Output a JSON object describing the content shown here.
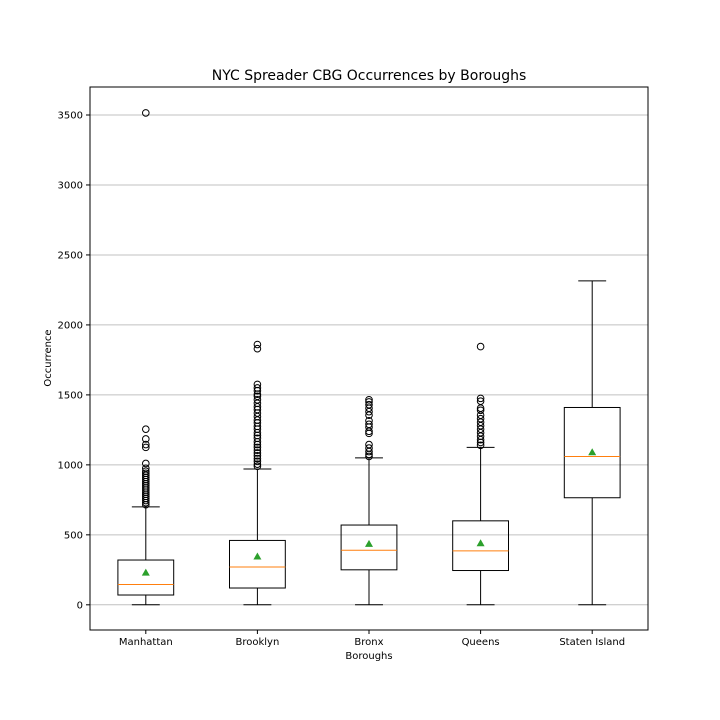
{
  "chart_data": {
    "type": "box",
    "title": "NYC Spreader CBG Occurrences by Boroughs",
    "xlabel": "Boroughs",
    "ylabel": "Occurrence",
    "ylim": [
      -180,
      3700
    ],
    "yticks": [
      0,
      500,
      1000,
      1500,
      2000,
      2500,
      3000,
      3500
    ],
    "grid": "horizontal",
    "colors": {
      "box": "#000000",
      "median": "#ff7f0e",
      "mean": "#2ca02c",
      "grid": "#c0c0c0"
    },
    "categories": [
      "Manhattan",
      "Brooklyn",
      "Bronx",
      "Queens",
      "Staten Island"
    ],
    "boxes": [
      {
        "name": "Manhattan",
        "whisker_low": 0,
        "q1": 70,
        "median": 145,
        "q3": 320,
        "whisker_high": 700,
        "mean": 230,
        "outliers": [
          3515,
          1255,
          1185,
          1145,
          1125,
          1010,
          975,
          955,
          940,
          925,
          910,
          895,
          880,
          865,
          850,
          835,
          820,
          805,
          790,
          775,
          760,
          745,
          730,
          715
        ]
      },
      {
        "name": "Brooklyn",
        "whisker_low": 0,
        "q1": 120,
        "median": 270,
        "q3": 460,
        "whisker_high": 970,
        "mean": 345,
        "outliers": [
          1860,
          1830,
          1575,
          1550,
          1530,
          1505,
          1490,
          1465,
          1440,
          1415,
          1395,
          1370,
          1345,
          1320,
          1300,
          1275,
          1255,
          1230,
          1210,
          1190,
          1165,
          1145,
          1125,
          1105,
          1085,
          1065,
          1045,
          1025,
          1005,
          990
        ]
      },
      {
        "name": "Bronx",
        "whisker_low": 0,
        "q1": 250,
        "median": 390,
        "q3": 570,
        "whisker_high": 1050,
        "mean": 435,
        "outliers": [
          1465,
          1450,
          1430,
          1405,
          1380,
          1355,
          1315,
          1290,
          1270,
          1240,
          1225,
          1145,
          1120,
          1095,
          1075,
          1060
        ]
      },
      {
        "name": "Queens",
        "whisker_low": 0,
        "q1": 245,
        "median": 385,
        "q3": 600,
        "whisker_high": 1125,
        "mean": 440,
        "outliers": [
          1845,
          1475,
          1455,
          1405,
          1390,
          1355,
          1330,
          1305,
          1280,
          1255,
          1230,
          1205,
          1180,
          1160,
          1140
        ]
      },
      {
        "name": "Staten Island",
        "whisker_low": 0,
        "q1": 765,
        "median": 1060,
        "q3": 1410,
        "whisker_high": 2315,
        "mean": 1090,
        "outliers": []
      }
    ]
  }
}
